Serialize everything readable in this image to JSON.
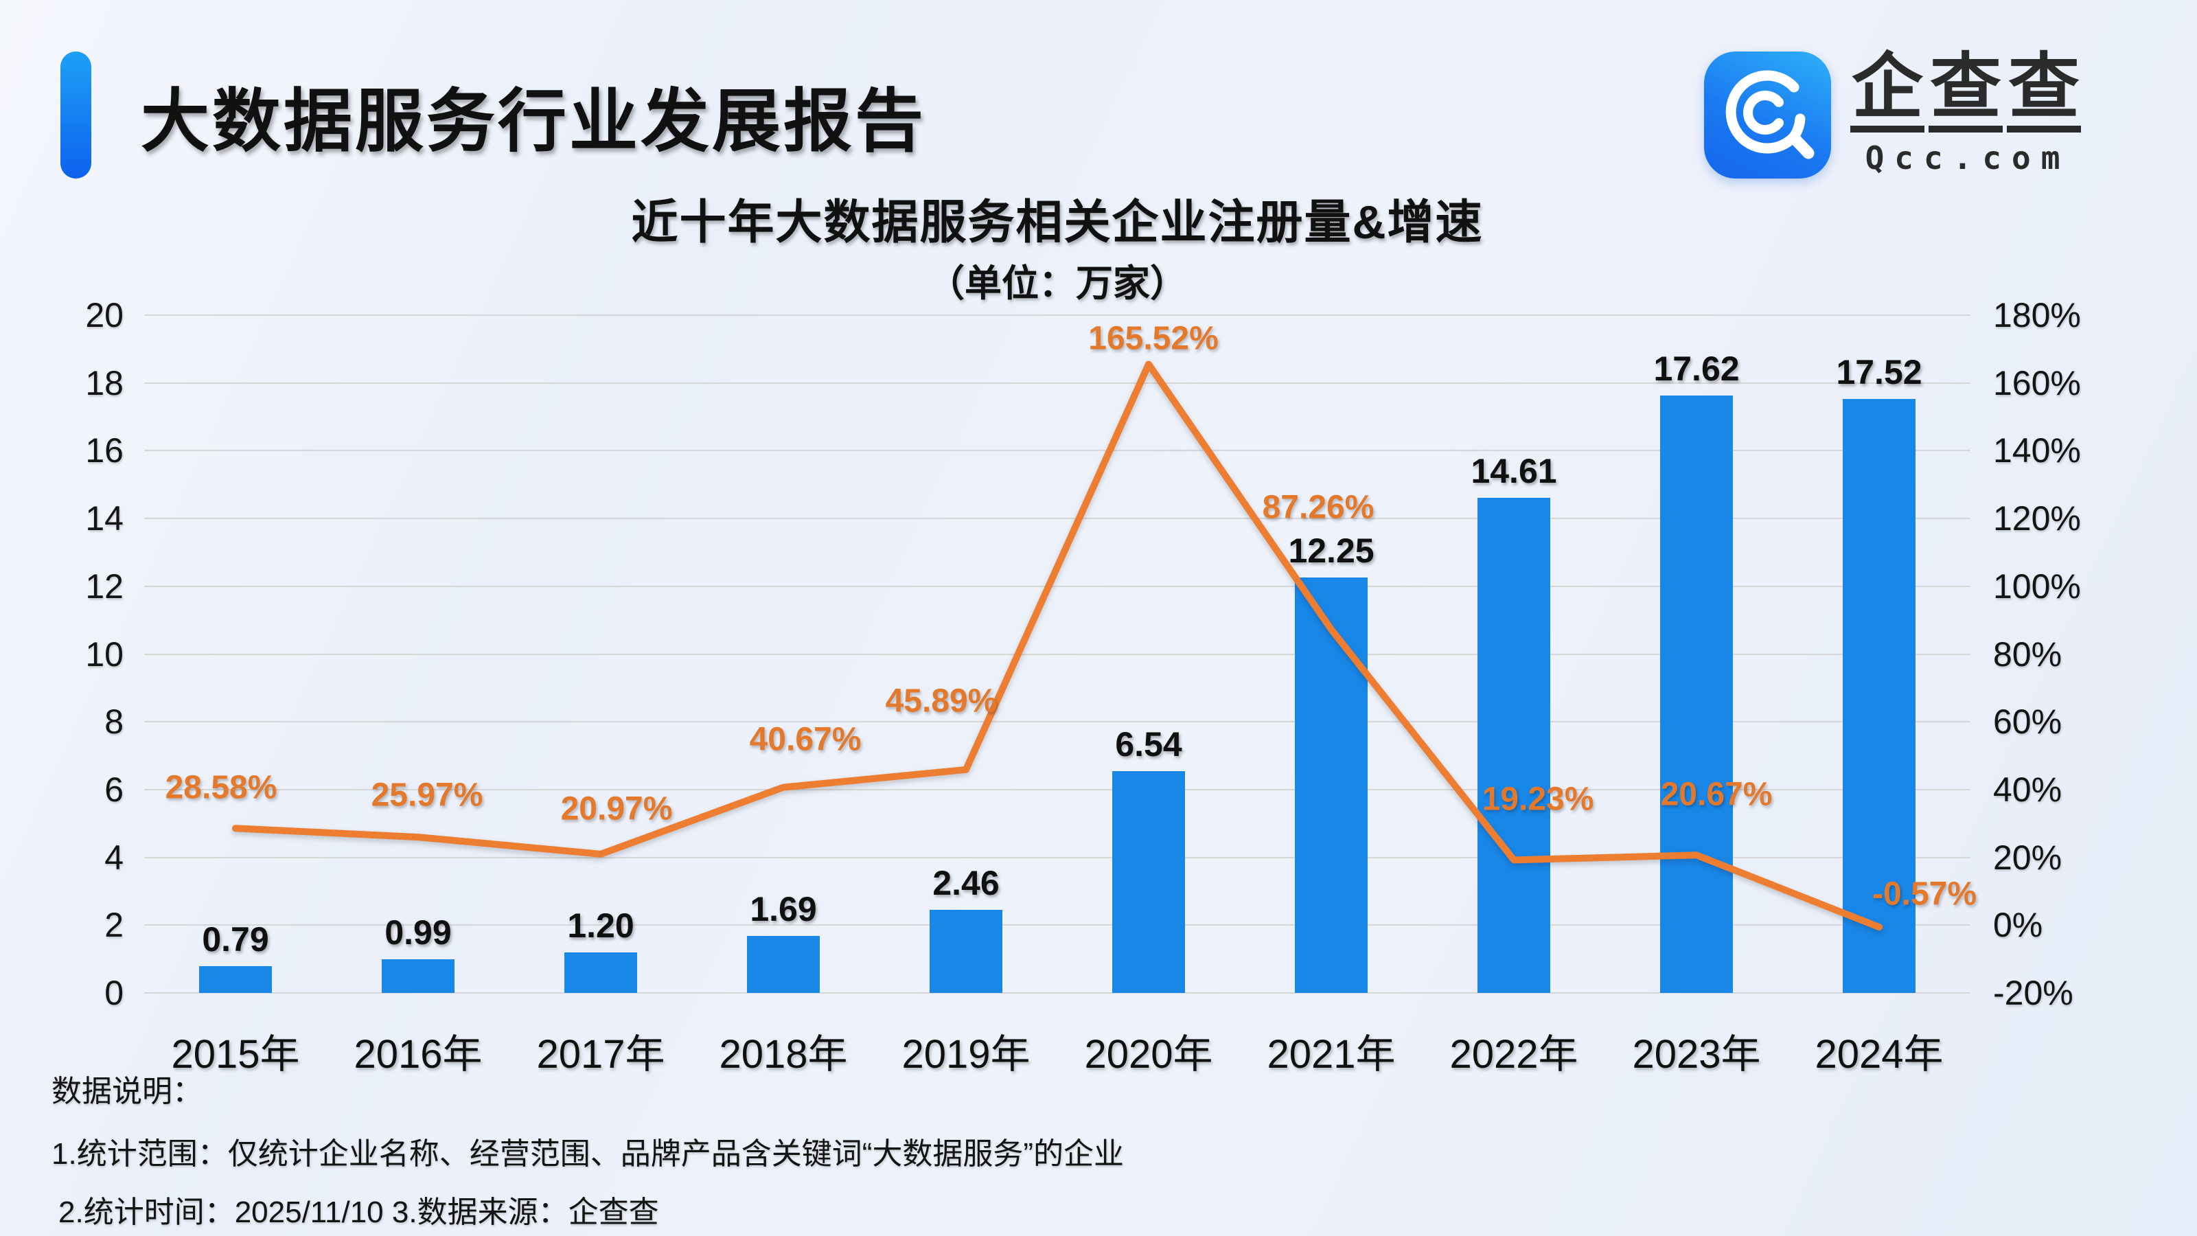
{
  "header": {
    "title": "大数据服务行业发展报告"
  },
  "logo": {
    "brand_chars": [
      "企",
      "查",
      "查"
    ],
    "domain": "Qcc.com",
    "icon": "qcc-magnifier-icon",
    "icon_colors": [
      "#2fb0f8",
      "#1565ec"
    ]
  },
  "chart_data": {
    "type": "bar+line",
    "title": "近十年大数据服务相关企业注册量&增速",
    "subtitle": "（单位：万家）",
    "categories": [
      "2015年",
      "2016年",
      "2017年",
      "2018年",
      "2019年",
      "2020年",
      "2021年",
      "2022年",
      "2023年",
      "2024年"
    ],
    "series": [
      {
        "name": "注册量",
        "type": "bar",
        "color": "#1987e8",
        "values": [
          0.79,
          0.99,
          1.2,
          1.69,
          2.46,
          6.54,
          12.25,
          14.61,
          17.62,
          17.52
        ],
        "labels": [
          "0.79",
          "0.99",
          "1.20",
          "1.69",
          "2.46",
          "6.54",
          "12.25",
          "14.61",
          "17.62",
          "17.52"
        ]
      },
      {
        "name": "增速",
        "type": "line",
        "color": "#ed7d31",
        "values": [
          28.58,
          25.97,
          20.97,
          40.67,
          45.89,
          165.52,
          87.26,
          19.23,
          20.67,
          -0.57
        ],
        "labels": [
          "28.58%",
          "25.97%",
          "20.97%",
          "40.67%",
          "45.89%",
          "165.52%",
          "87.26%",
          "19.23%",
          "20.67%",
          "-0.57%"
        ]
      }
    ],
    "y_left": {
      "min": 0,
      "max": 20,
      "tick_labels": [
        "20",
        "18",
        "16",
        "14",
        "12",
        "10",
        "8",
        "6",
        "4",
        "2",
        "0"
      ]
    },
    "y_right": {
      "min": -20,
      "max": 180,
      "tick_labels": [
        "180%",
        "160%",
        "140%",
        "120%",
        "100%",
        "80%",
        "60%",
        "40%",
        "20%",
        "0%",
        "-20%"
      ]
    },
    "grid": true,
    "legend": "none"
  },
  "footer": {
    "heading": "数据说明：",
    "line1": "1.统计范围：仅统计企业名称、经营范围、品牌产品含关键词“大数据服务”的企业",
    "line2": "2.统计时间：2025/11/10  3.数据来源：企查查"
  }
}
